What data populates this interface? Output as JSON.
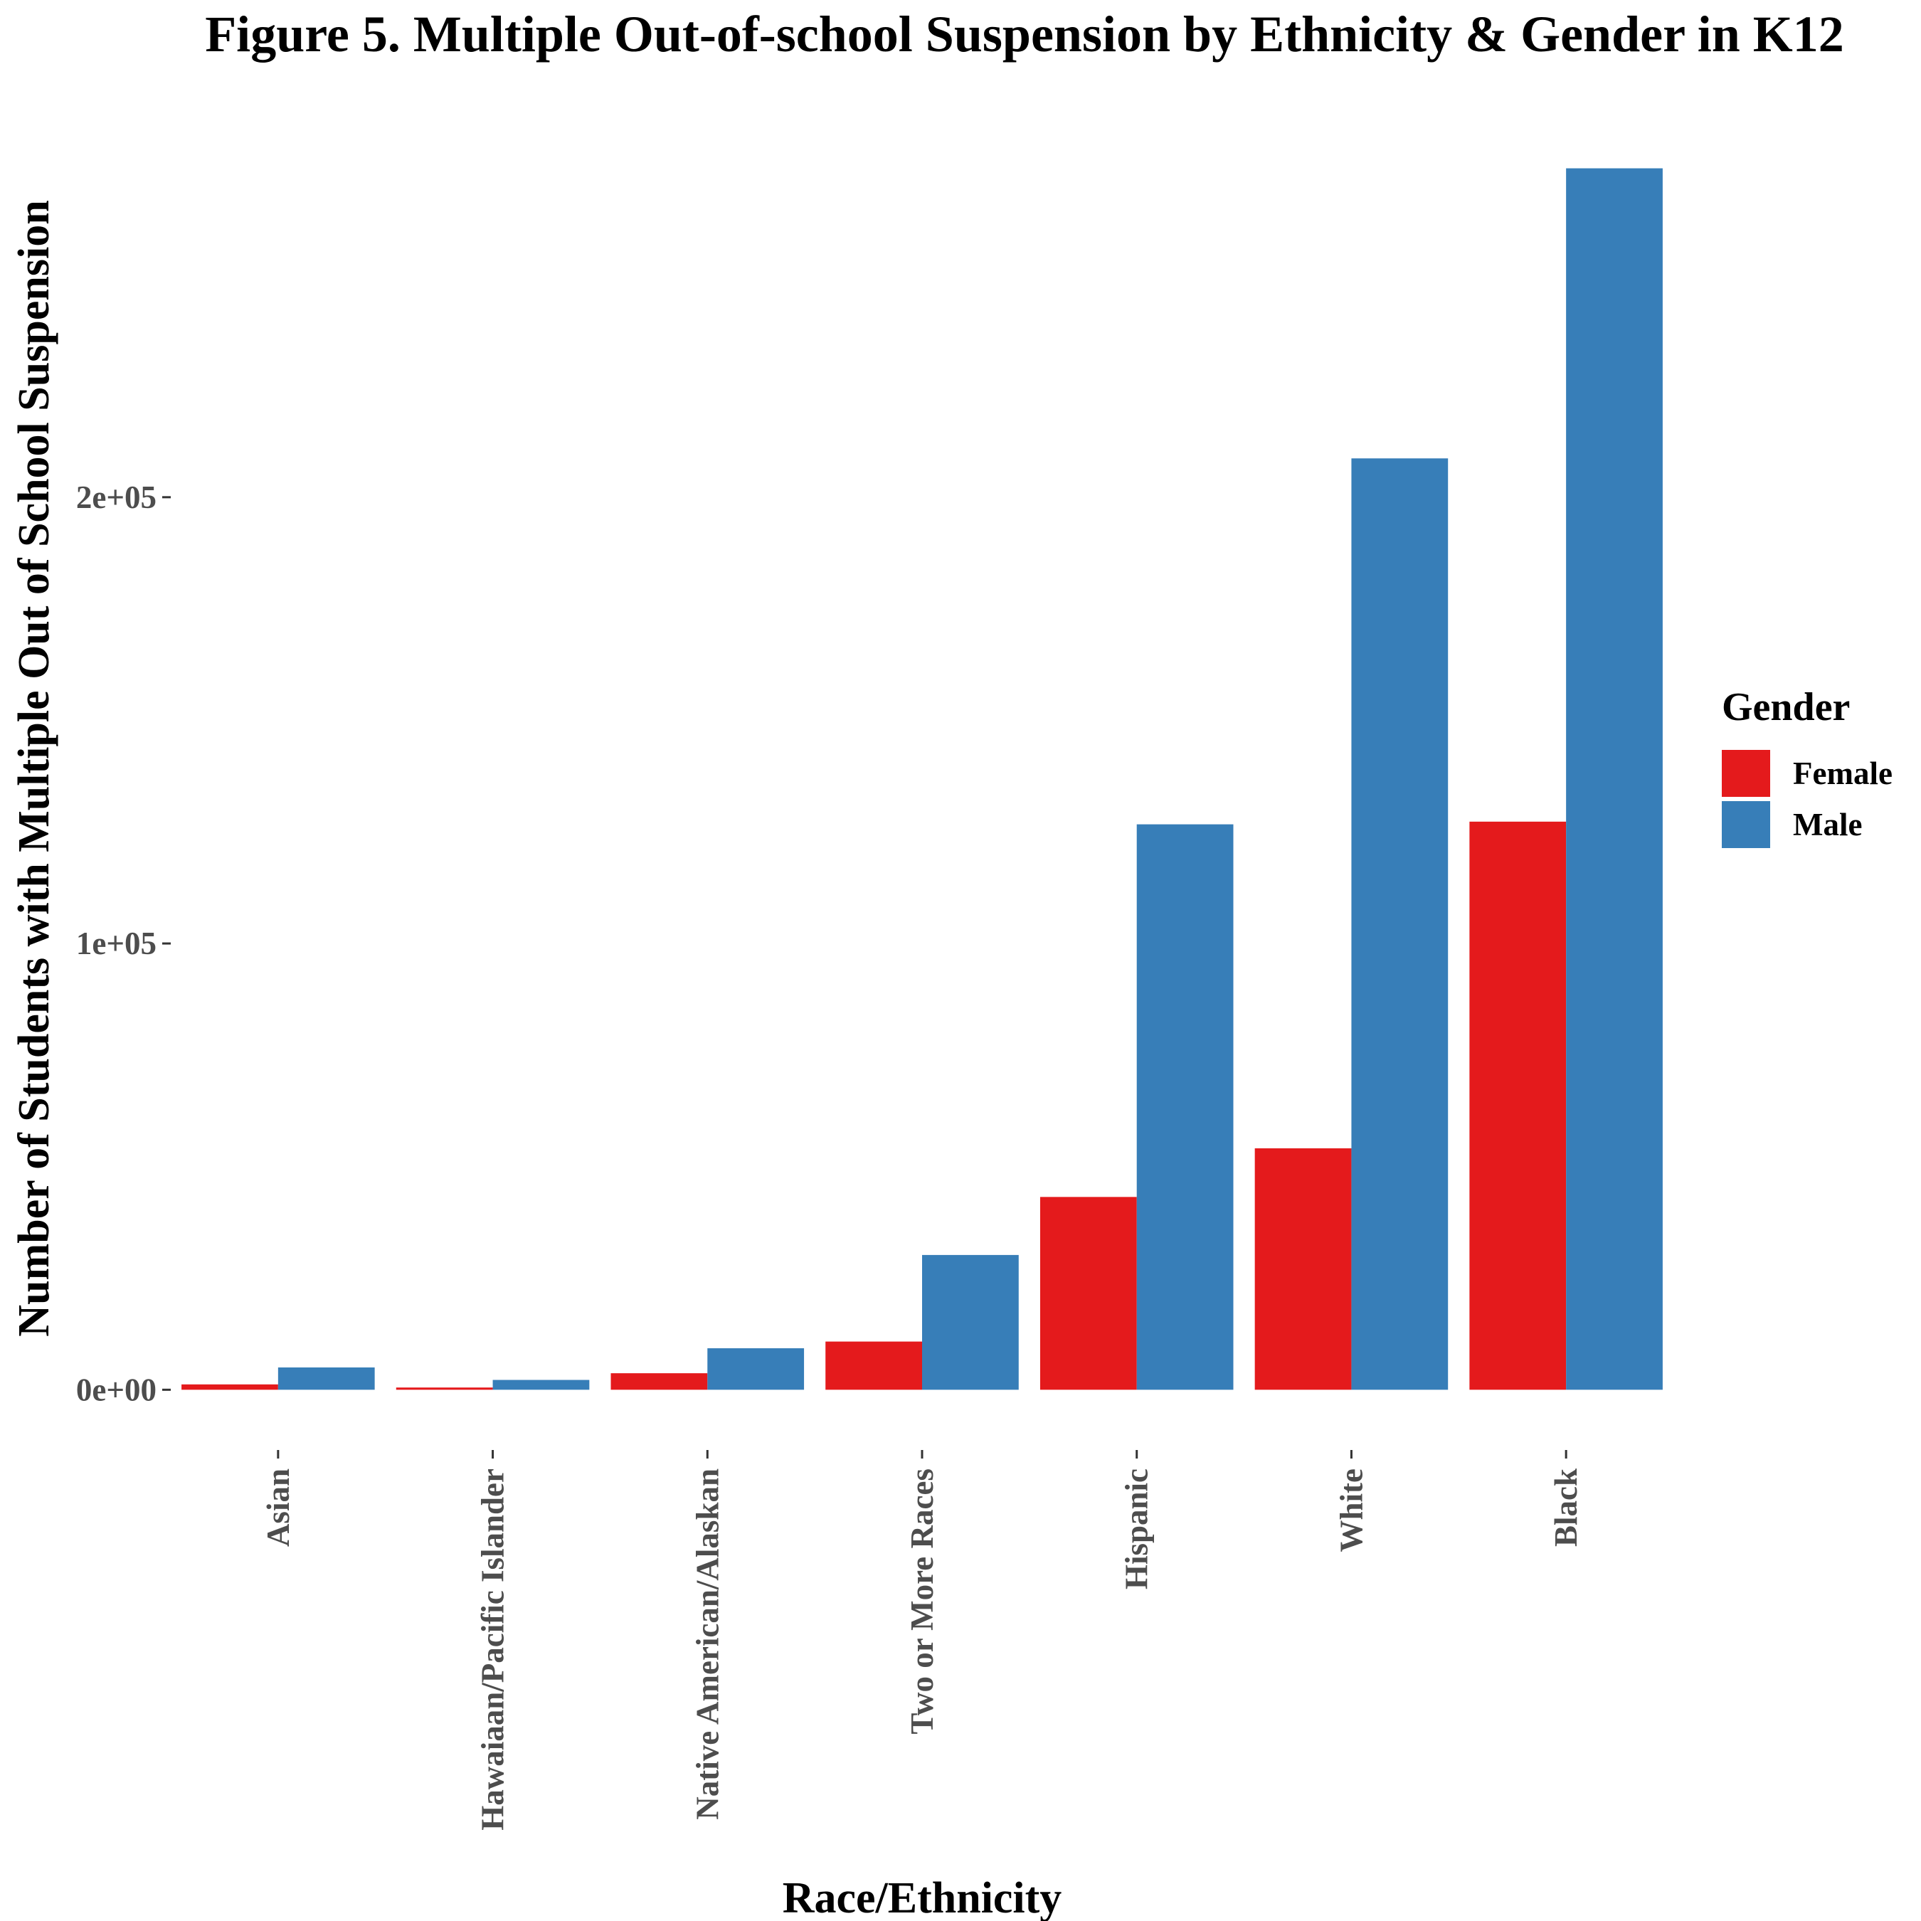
{
  "chart_data": {
    "type": "bar",
    "title": "Figure 5. Multiple Out-of-school Suspension by Ethnicity & Gender in K12",
    "xlabel": "Race/Ethnicity",
    "ylabel": "Number of Students with Multiple Out of School Suspension",
    "categories": [
      "Asian",
      "Hawaiaan/Pacific Islander",
      "Native American/Alaskan",
      "Two or More Races",
      "Hispanic",
      "White",
      "Black"
    ],
    "series": [
      {
        "name": "Female",
        "color": "#e41a1c",
        "values": [
          1200,
          500,
          3700,
          10800,
          43200,
          54100,
          127300
        ]
      },
      {
        "name": "Male",
        "color": "#377eb8",
        "values": [
          5000,
          2200,
          9300,
          30200,
          126700,
          208700,
          273700
        ]
      }
    ],
    "ylim": [
      -13500,
      287500
    ],
    "yticks": [
      0,
      100000,
      200000
    ],
    "ytick_labels": [
      "0e+00",
      "1e+05",
      "2e+05"
    ],
    "grid": false,
    "legend": {
      "title": "Gender",
      "position": "right"
    }
  }
}
